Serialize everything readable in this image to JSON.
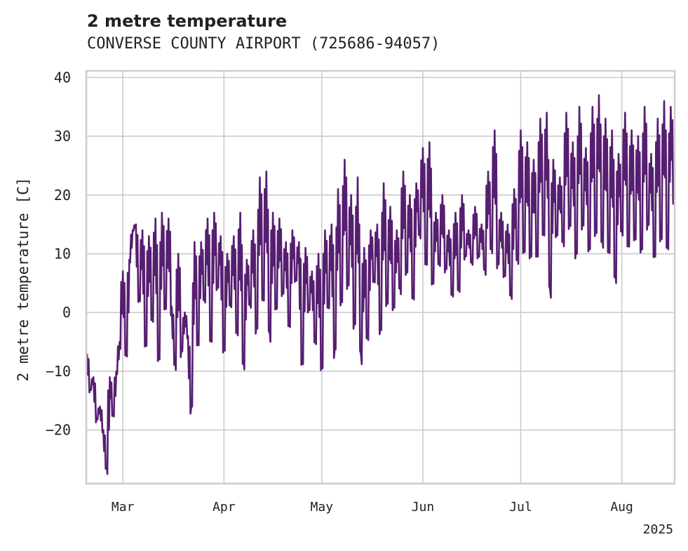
{
  "chart_data": {
    "type": "line",
    "title": "2 metre temperature",
    "subtitle": "CONVERSE COUNTY AIRPORT (725686-94057)",
    "xlabel": "",
    "ylabel": "2 metre temperature [C]",
    "x_tick_labels": [
      "Mar",
      "Apr",
      "May",
      "Jun",
      "Jul",
      "Aug"
    ],
    "x_tick_dates": [
      "2025-03-01",
      "2025-04-01",
      "2025-05-01",
      "2025-06-01",
      "2025-07-01",
      "2025-08-01"
    ],
    "x_year_label": "2025",
    "xlim": [
      "2025-02-18",
      "2025-08-17"
    ],
    "y_ticks": [
      -20,
      -10,
      0,
      10,
      20,
      30,
      40
    ],
    "ylim": [
      -29,
      41
    ],
    "grid": true,
    "series": [
      {
        "color": "#561e70",
        "points": [
          [
            "2025-02-18",
            -7
          ],
          [
            "2025-02-19",
            -13
          ],
          [
            "2025-02-20",
            -11
          ],
          [
            "2025-02-21",
            -18
          ],
          [
            "2025-02-22",
            -16
          ],
          [
            "2025-02-23",
            -20
          ],
          [
            "2025-02-24",
            -26
          ],
          [
            "2025-02-25",
            -11
          ],
          [
            "2025-02-26",
            -17
          ],
          [
            "2025-02-27",
            -10
          ],
          [
            "2025-02-28",
            -5
          ],
          [
            "2025-03-01",
            7
          ],
          [
            "2025-03-02",
            -6
          ],
          [
            "2025-03-03",
            9
          ],
          [
            "2025-03-04",
            14
          ],
          [
            "2025-03-05",
            15
          ],
          [
            "2025-03-06",
            3
          ],
          [
            "2025-03-07",
            14
          ],
          [
            "2025-03-08",
            -4
          ],
          [
            "2025-03-09",
            13
          ],
          [
            "2025-03-10",
            0
          ],
          [
            "2025-03-11",
            16
          ],
          [
            "2025-03-12",
            -7
          ],
          [
            "2025-03-13",
            17
          ],
          [
            "2025-03-14",
            2
          ],
          [
            "2025-03-15",
            16
          ],
          [
            "2025-03-16",
            1
          ],
          [
            "2025-03-17",
            -8
          ],
          [
            "2025-03-18",
            10
          ],
          [
            "2025-03-19",
            -6
          ],
          [
            "2025-03-20",
            0
          ],
          [
            "2025-03-21",
            -4
          ],
          [
            "2025-03-22",
            -16
          ],
          [
            "2025-03-23",
            12
          ],
          [
            "2025-03-24",
            -4
          ],
          [
            "2025-03-25",
            12
          ],
          [
            "2025-03-26",
            3
          ],
          [
            "2025-03-27",
            16
          ],
          [
            "2025-03-28",
            -3
          ],
          [
            "2025-03-29",
            17
          ],
          [
            "2025-03-30",
            5
          ],
          [
            "2025-03-31",
            13
          ],
          [
            "2025-04-01",
            -5
          ],
          [
            "2025-04-02",
            10
          ],
          [
            "2025-04-03",
            2
          ],
          [
            "2025-04-04",
            13
          ],
          [
            "2025-04-05",
            -2
          ],
          [
            "2025-04-06",
            17
          ],
          [
            "2025-04-07",
            -8
          ],
          [
            "2025-04-08",
            9
          ],
          [
            "2025-04-09",
            2
          ],
          [
            "2025-04-10",
            14
          ],
          [
            "2025-04-11",
            -2
          ],
          [
            "2025-04-12",
            23
          ],
          [
            "2025-04-13",
            4
          ],
          [
            "2025-04-14",
            24
          ],
          [
            "2025-04-15",
            -3
          ],
          [
            "2025-04-16",
            17
          ],
          [
            "2025-04-17",
            2
          ],
          [
            "2025-04-18",
            16
          ],
          [
            "2025-04-19",
            4
          ],
          [
            "2025-04-20",
            12
          ],
          [
            "2025-04-21",
            -1
          ],
          [
            "2025-04-22",
            14
          ],
          [
            "2025-04-23",
            6
          ],
          [
            "2025-04-24",
            12
          ],
          [
            "2025-04-25",
            -7
          ],
          [
            "2025-04-26",
            11
          ],
          [
            "2025-04-27",
            1
          ],
          [
            "2025-04-28",
            7
          ],
          [
            "2025-04-29",
            -4
          ],
          [
            "2025-04-30",
            10
          ],
          [
            "2025-05-01",
            -8
          ],
          [
            "2025-05-02",
            14
          ],
          [
            "2025-05-03",
            2
          ],
          [
            "2025-05-04",
            15
          ],
          [
            "2025-05-05",
            -6
          ],
          [
            "2025-05-06",
            21
          ],
          [
            "2025-05-07",
            3
          ],
          [
            "2025-05-08",
            26
          ],
          [
            "2025-05-09",
            6
          ],
          [
            "2025-05-10",
            20
          ],
          [
            "2025-05-11",
            -1
          ],
          [
            "2025-05-12",
            23
          ],
          [
            "2025-05-13",
            -7
          ],
          [
            "2025-05-14",
            11
          ],
          [
            "2025-05-15",
            -3
          ],
          [
            "2025-05-16",
            14
          ],
          [
            "2025-05-17",
            6
          ],
          [
            "2025-05-18",
            15
          ],
          [
            "2025-05-19",
            -2
          ],
          [
            "2025-05-20",
            22
          ],
          [
            "2025-05-21",
            3
          ],
          [
            "2025-05-22",
            18
          ],
          [
            "2025-05-23",
            2
          ],
          [
            "2025-05-24",
            14
          ],
          [
            "2025-05-25",
            5
          ],
          [
            "2025-05-26",
            24
          ],
          [
            "2025-05-27",
            8
          ],
          [
            "2025-05-28",
            20
          ],
          [
            "2025-05-29",
            4
          ],
          [
            "2025-05-30",
            22
          ],
          [
            "2025-05-31",
            14
          ],
          [
            "2025-06-01",
            28
          ],
          [
            "2025-06-02",
            10
          ],
          [
            "2025-06-03",
            29
          ],
          [
            "2025-06-04",
            6
          ],
          [
            "2025-06-05",
            17
          ],
          [
            "2025-06-06",
            9
          ],
          [
            "2025-06-07",
            20
          ],
          [
            "2025-06-08",
            8
          ],
          [
            "2025-06-09",
            14
          ],
          [
            "2025-06-10",
            4
          ],
          [
            "2025-06-11",
            17
          ],
          [
            "2025-06-12",
            5
          ],
          [
            "2025-06-13",
            20
          ],
          [
            "2025-06-14",
            10
          ],
          [
            "2025-06-15",
            14
          ],
          [
            "2025-06-16",
            9
          ],
          [
            "2025-06-17",
            18
          ],
          [
            "2025-06-18",
            10
          ],
          [
            "2025-06-19",
            15
          ],
          [
            "2025-06-20",
            8
          ],
          [
            "2025-06-21",
            24
          ],
          [
            "2025-06-22",
            12
          ],
          [
            "2025-06-23",
            31
          ],
          [
            "2025-06-24",
            9
          ],
          [
            "2025-06-25",
            17
          ],
          [
            "2025-06-26",
            7
          ],
          [
            "2025-06-27",
            15
          ],
          [
            "2025-06-28",
            4
          ],
          [
            "2025-06-29",
            21
          ],
          [
            "2025-06-30",
            10
          ],
          [
            "2025-07-01",
            31
          ],
          [
            "2025-07-02",
            12
          ],
          [
            "2025-07-03",
            29
          ],
          [
            "2025-07-04",
            11
          ],
          [
            "2025-07-05",
            26
          ],
          [
            "2025-07-06",
            11
          ],
          [
            "2025-07-07",
            33
          ],
          [
            "2025-07-08",
            15
          ],
          [
            "2025-07-09",
            34
          ],
          [
            "2025-07-10",
            4
          ],
          [
            "2025-07-11",
            26
          ],
          [
            "2025-07-12",
            14
          ],
          [
            "2025-07-13",
            23
          ],
          [
            "2025-07-14",
            13
          ],
          [
            "2025-07-15",
            34
          ],
          [
            "2025-07-16",
            16
          ],
          [
            "2025-07-17",
            29
          ],
          [
            "2025-07-18",
            11
          ],
          [
            "2025-07-19",
            35
          ],
          [
            "2025-07-20",
            16
          ],
          [
            "2025-07-21",
            28
          ],
          [
            "2025-07-22",
            12
          ],
          [
            "2025-07-23",
            35
          ],
          [
            "2025-07-24",
            15
          ],
          [
            "2025-07-25",
            37
          ],
          [
            "2025-07-26",
            13
          ],
          [
            "2025-07-27",
            33
          ],
          [
            "2025-07-28",
            12
          ],
          [
            "2025-07-29",
            31
          ],
          [
            "2025-07-30",
            7
          ],
          [
            "2025-07-31",
            27
          ],
          [
            "2025-08-01",
            15
          ],
          [
            "2025-08-02",
            34
          ],
          [
            "2025-08-03",
            13
          ],
          [
            "2025-08-04",
            31
          ],
          [
            "2025-08-05",
            14
          ],
          [
            "2025-08-06",
            30
          ],
          [
            "2025-08-07",
            12
          ],
          [
            "2025-08-08",
            35
          ],
          [
            "2025-08-09",
            16
          ],
          [
            "2025-08-10",
            27
          ],
          [
            "2025-08-11",
            11
          ],
          [
            "2025-08-12",
            33
          ],
          [
            "2025-08-13",
            14
          ],
          [
            "2025-08-14",
            36
          ],
          [
            "2025-08-15",
            12
          ],
          [
            "2025-08-16",
            35
          ],
          [
            "2025-08-17",
            20
          ]
        ]
      }
    ]
  }
}
